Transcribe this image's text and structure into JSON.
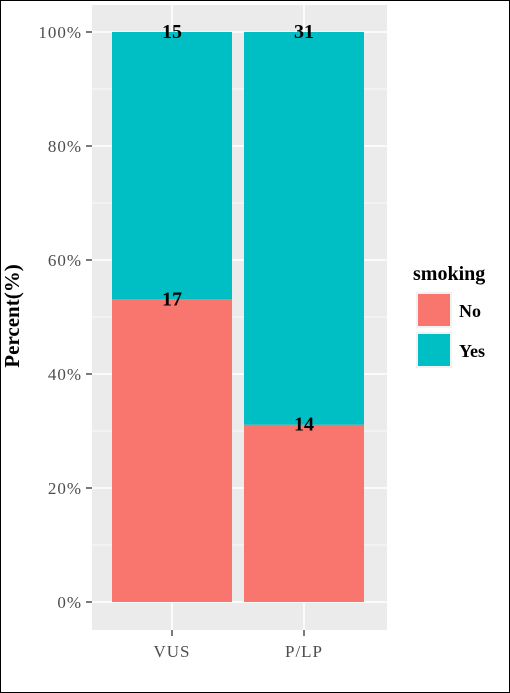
{
  "chart_data": {
    "type": "bar",
    "stacked": true,
    "percent": true,
    "categories": [
      "VUS",
      "P/LP"
    ],
    "series": [
      {
        "name": "No",
        "counts": [
          17,
          14
        ],
        "values": [
          53.1,
          31.1
        ],
        "color": "#F8766D"
      },
      {
        "name": "Yes",
        "counts": [
          15,
          31
        ],
        "values": [
          46.9,
          68.9
        ],
        "color": "#00BFC4"
      }
    ],
    "ylabel": "Percent(%)",
    "xlabel": "",
    "ylim": [
      0,
      100
    ],
    "yticks": [
      "0%",
      "20%",
      "40%",
      "60%",
      "80%",
      "100%"
    ],
    "grid": true,
    "panel_background": "#EBEBEB",
    "legend": {
      "title": "smoking",
      "position": "right"
    }
  }
}
